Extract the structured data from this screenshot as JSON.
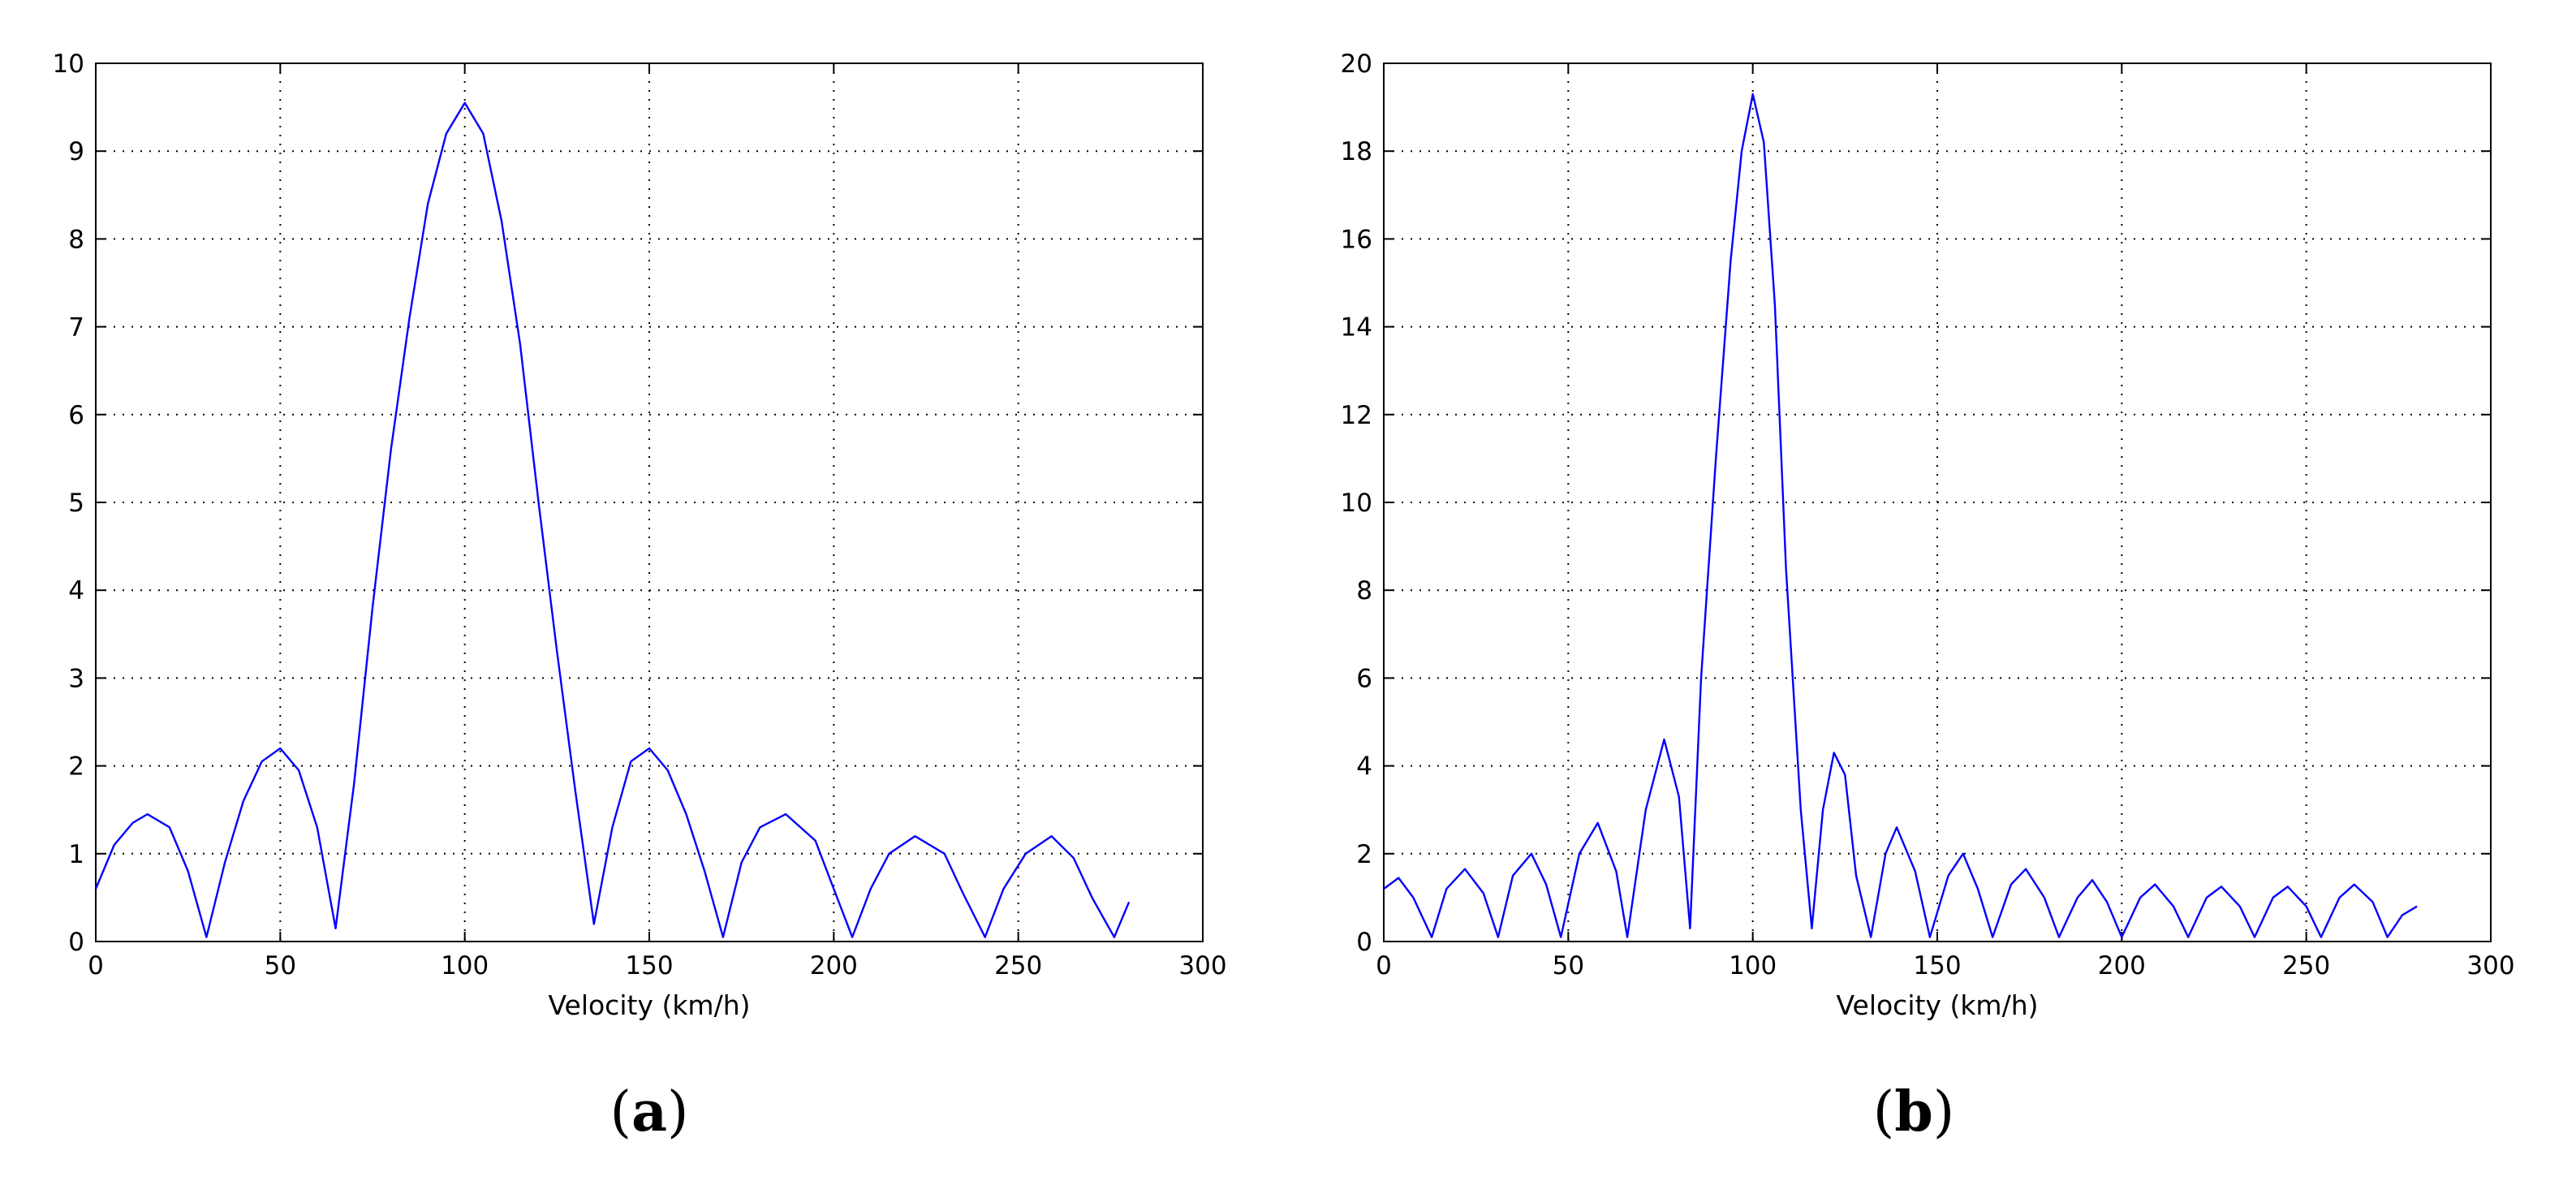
{
  "chart_data": [
    {
      "type": "line",
      "caption": "a",
      "title": "",
      "xlabel": "Velocity (km/h)",
      "ylabel": "",
      "xlim": [
        0,
        300
      ],
      "ylim": [
        0,
        10
      ],
      "xticks": [
        0,
        50,
        100,
        150,
        200,
        250,
        300
      ],
      "yticks": [
        0,
        1,
        2,
        3,
        4,
        5,
        6,
        7,
        8,
        9,
        10
      ],
      "grid": true,
      "line_color": "#0000ff",
      "series": [
        {
          "x": [
            0,
            5,
            10,
            14,
            20,
            25,
            30,
            35,
            40,
            45,
            50,
            55,
            60,
            65,
            70,
            75,
            80,
            85,
            90,
            95,
            100,
            105,
            110,
            115,
            120,
            125,
            130,
            135,
            140,
            145,
            150,
            155,
            160,
            165,
            170,
            175,
            180,
            187,
            195,
            200,
            205,
            210,
            215,
            222,
            230,
            235,
            241,
            246,
            252,
            259,
            265,
            270,
            276,
            280
          ],
          "y": [
            0.6,
            1.1,
            1.35,
            1.45,
            1.3,
            0.8,
            0.05,
            0.9,
            1.6,
            2.05,
            2.2,
            1.95,
            1.3,
            0.15,
            1.8,
            3.8,
            5.6,
            7.1,
            8.4,
            9.2,
            9.55,
            9.2,
            8.2,
            6.8,
            5.0,
            3.3,
            1.7,
            0.2,
            1.3,
            2.05,
            2.2,
            1.95,
            1.45,
            0.8,
            0.05,
            0.9,
            1.3,
            1.45,
            1.15,
            0.6,
            0.05,
            0.6,
            1.0,
            1.2,
            1.0,
            0.55,
            0.05,
            0.6,
            1.0,
            1.2,
            0.95,
            0.5,
            0.05,
            0.45
          ]
        }
      ]
    },
    {
      "type": "line",
      "caption": "b",
      "title": "",
      "xlabel": "Velocity (km/h)",
      "ylabel": "",
      "xlim": [
        0,
        300
      ],
      "ylim": [
        0,
        20
      ],
      "xticks": [
        0,
        50,
        100,
        150,
        200,
        250,
        300
      ],
      "yticks": [
        0,
        2,
        4,
        6,
        8,
        10,
        12,
        14,
        16,
        18,
        20
      ],
      "grid": true,
      "line_color": "#0000ff",
      "series": [
        {
          "x": [
            0,
            4,
            8,
            13,
            17,
            22,
            27,
            31,
            35,
            40,
            44,
            48,
            53,
            58,
            63,
            66,
            71,
            76,
            80,
            83,
            86,
            90,
            94,
            97,
            100,
            103,
            106,
            109,
            113,
            116,
            119,
            122,
            125,
            128,
            132,
            136,
            139,
            144,
            148,
            153,
            157,
            161,
            165,
            170,
            174,
            179,
            183,
            188,
            192,
            196,
            200,
            205,
            209,
            214,
            218,
            223,
            227,
            232,
            236,
            241,
            245,
            250,
            254,
            259,
            263,
            268,
            272,
            276,
            280
          ],
          "y": [
            1.2,
            1.45,
            1.0,
            0.1,
            1.2,
            1.65,
            1.1,
            0.1,
            1.5,
            2.0,
            1.3,
            0.1,
            2.0,
            2.7,
            1.6,
            0.1,
            3.0,
            4.6,
            3.3,
            0.3,
            6.0,
            11.0,
            15.5,
            18.0,
            19.3,
            18.2,
            14.5,
            8.5,
            3.0,
            0.3,
            3.0,
            4.3,
            3.8,
            1.5,
            0.1,
            2.0,
            2.6,
            1.6,
            0.1,
            1.5,
            2.0,
            1.2,
            0.1,
            1.3,
            1.65,
            1.0,
            0.1,
            1.0,
            1.4,
            0.9,
            0.1,
            1.0,
            1.3,
            0.8,
            0.1,
            1.0,
            1.25,
            0.8,
            0.1,
            1.0,
            1.25,
            0.8,
            0.1,
            1.0,
            1.3,
            0.9,
            0.1,
            0.6,
            0.8
          ]
        }
      ]
    }
  ]
}
